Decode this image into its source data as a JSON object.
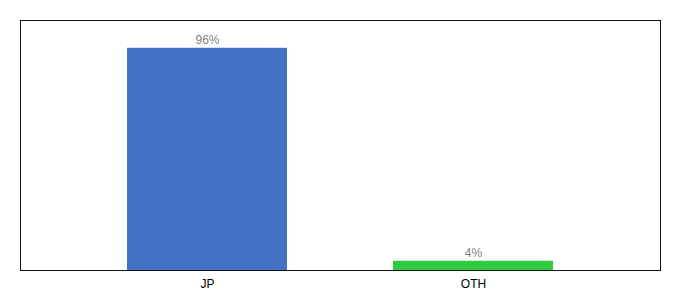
{
  "chart_data": {
    "type": "bar",
    "categories": [
      "JP",
      "OTH"
    ],
    "values": [
      96,
      4
    ],
    "value_labels": [
      "96%",
      "4%"
    ],
    "colors": [
      "#4472c4",
      "#2ecc40"
    ],
    "ylim": [
      0,
      108
    ],
    "tick_labels": "x"
  }
}
